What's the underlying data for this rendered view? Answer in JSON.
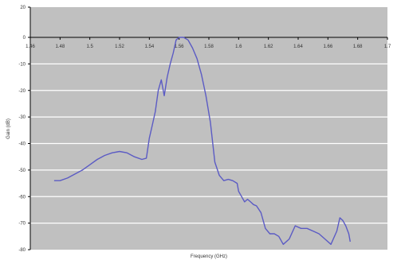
{
  "chart_data": {
    "type": "line",
    "title": "",
    "xlabel": "Frequency (GHz)",
    "ylabel": "Gain (dB)",
    "xlim": [
      1.46,
      1.7
    ],
    "ylim": [
      -80,
      20
    ],
    "xticks": [
      1.46,
      1.48,
      1.5,
      1.52,
      1.54,
      1.56,
      1.58,
      1.6,
      1.62,
      1.64,
      1.66,
      1.68,
      1.7
    ],
    "xtick_labels": [
      "1.46",
      "1.48",
      "1.5",
      "1.52",
      "1.54",
      "1.56",
      "1.58",
      "1.6",
      "1.62",
      "1.64",
      "1.66",
      "1.68",
      "1.7"
    ],
    "yticks": [
      20,
      0,
      -10,
      -20,
      -30,
      -40,
      -50,
      -60,
      -70,
      -80
    ],
    "ytick_labels": [
      "20",
      "0",
      "-10",
      "-20",
      "-30",
      "-40",
      "-50",
      "-60",
      "-70",
      "-80"
    ],
    "grid": true,
    "legend": "none",
    "colors": {
      "line": "#5b5bc4",
      "plot_bg": "#c0c0c0",
      "grid": "#ffffff",
      "axis": "#000000"
    },
    "series": [
      {
        "x": [
          1.476,
          1.48,
          1.485,
          1.49,
          1.495,
          1.5,
          1.505,
          1.51,
          1.515,
          1.52,
          1.525,
          1.53,
          1.535,
          1.538,
          1.54,
          1.542,
          1.544,
          1.546,
          1.548,
          1.55,
          1.552,
          1.554,
          1.556,
          1.558,
          1.56,
          1.563,
          1.566,
          1.569,
          1.572,
          1.575,
          1.578,
          1.581,
          1.584,
          1.587,
          1.59,
          1.593,
          1.596,
          1.599,
          1.6,
          1.602,
          1.604,
          1.606,
          1.608,
          1.61,
          1.612,
          1.615,
          1.618,
          1.621,
          1.624,
          1.627,
          1.63,
          1.634,
          1.638,
          1.642,
          1.646,
          1.65,
          1.654,
          1.658,
          1.662,
          1.666,
          1.668,
          1.67,
          1.672,
          1.674,
          1.675
        ],
        "y": [
          -54,
          -54,
          -53,
          -51.5,
          -50,
          -48,
          -46,
          -44.5,
          -43.5,
          -43,
          -43.5,
          -45,
          -46,
          -45.5,
          -38,
          -33,
          -28,
          -20,
          -16,
          -22,
          -15,
          -10,
          -6,
          -1,
          0,
          0,
          -1,
          -4,
          -8,
          -14,
          -22,
          -32,
          -47,
          -52,
          -54,
          -53.5,
          -54,
          -55,
          -58,
          -60,
          -62,
          -61,
          -62,
          -63,
          -63.5,
          -66,
          -72,
          -74,
          -74,
          -75,
          -78,
          -76,
          -71,
          -72,
          -72,
          -73,
          -74,
          -76,
          -78,
          -73,
          -68,
          -69,
          -71,
          -74,
          -77
        ]
      }
    ]
  }
}
